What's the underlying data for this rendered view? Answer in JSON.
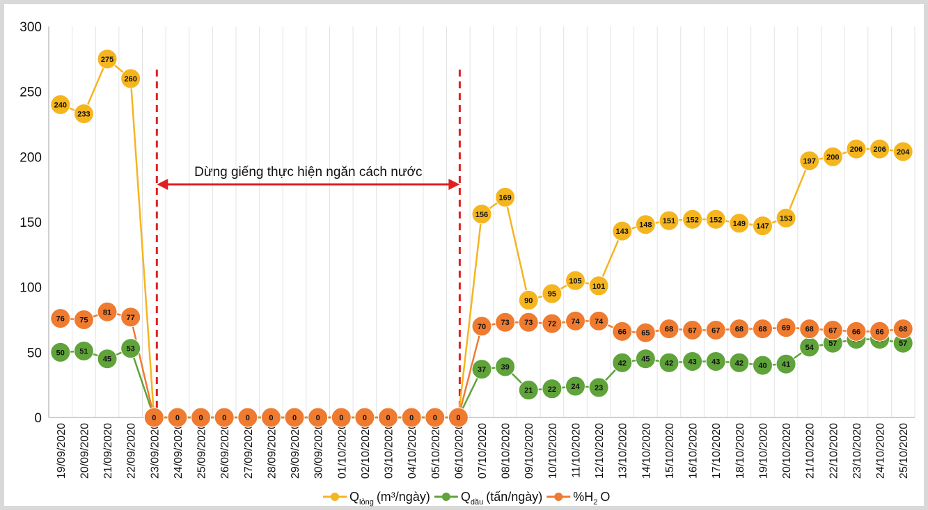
{
  "chart_data": {
    "type": "line",
    "ylim": [
      0,
      300
    ],
    "y_ticks": [
      0,
      50,
      100,
      150,
      200,
      250,
      300
    ],
    "grid": "vertical",
    "legend_placement": "bottom",
    "x": [
      "19/09/2020",
      "20/09/2020",
      "21/09/2020",
      "22/09/2020",
      "23/09/2020",
      "24/09/2020",
      "25/09/2020",
      "26/09/2020",
      "27/09/2020",
      "28/09/2020",
      "29/09/2020",
      "30/09/2020",
      "01/10/2020",
      "02/10/2020",
      "03/10/2020",
      "04/10/2020",
      "05/10/2020",
      "06/10/2020",
      "07/10/2020",
      "08/10/2020",
      "09/10/2020",
      "10/10/2020",
      "11/10/2020",
      "12/10/2020",
      "13/10/2020",
      "14/10/2020",
      "15/10/2020",
      "16/10/2020",
      "17/10/2020",
      "18/10/2020",
      "19/10/2020",
      "20/10/2020",
      "21/10/2020",
      "22/10/2020",
      "23/10/2020",
      "24/10/2020",
      "25/10/2020"
    ],
    "series": [
      {
        "key": "q_long",
        "legend_main": "Q",
        "legend_sub": "lỏng",
        "legend_unit": "(m³/ngày)",
        "color": "#f5b51f",
        "values": [
          240,
          233,
          275,
          260,
          0,
          0,
          0,
          0,
          0,
          0,
          0,
          0,
          0,
          0,
          0,
          0,
          0,
          0,
          156,
          169,
          90,
          95,
          105,
          101,
          143,
          148,
          151,
          152,
          152,
          149,
          147,
          153,
          197,
          200,
          206,
          206,
          204
        ]
      },
      {
        "key": "q_dau",
        "legend_main": "Q",
        "legend_sub": "dầu",
        "legend_unit": "(tấn/ngày)",
        "color": "#5fa33a",
        "values": [
          50,
          51,
          45,
          53,
          0,
          0,
          0,
          0,
          0,
          0,
          0,
          0,
          0,
          0,
          0,
          0,
          0,
          0,
          37,
          39,
          21,
          22,
          24,
          23,
          42,
          45,
          42,
          43,
          43,
          42,
          40,
          41,
          54,
          57,
          60,
          60,
          57
        ]
      },
      {
        "key": "h2o",
        "legend_main": "%H",
        "legend_sub": "2",
        "legend_unit": "O",
        "color": "#ee7b30",
        "values": [
          76,
          75,
          81,
          77,
          0,
          0,
          0,
          0,
          0,
          0,
          0,
          0,
          0,
          0,
          0,
          0,
          0,
          0,
          70,
          73,
          73,
          72,
          74,
          74,
          66,
          65,
          68,
          67,
          67,
          68,
          68,
          69,
          68,
          67,
          66,
          66,
          68
        ]
      }
    ],
    "annotation": {
      "text": "Dừng giếng thực hiện ngăn cách nước",
      "from_x": "23/09/2020",
      "to_x": "06/10/2020",
      "color": "#e02020"
    }
  }
}
